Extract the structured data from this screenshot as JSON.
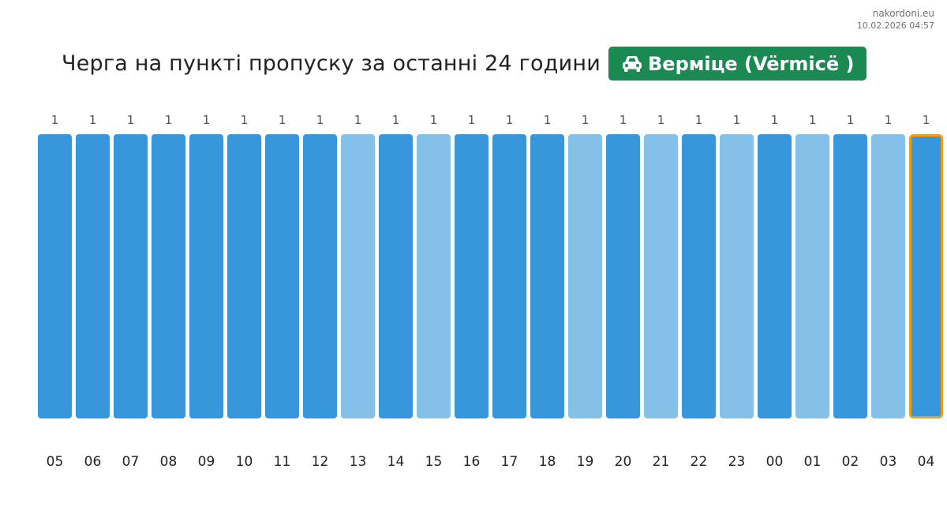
{
  "site": {
    "name": "nakordoni.eu",
    "timestamp": "10.02.2026 04:57"
  },
  "header": {
    "title": "Черга на пункті пропуску за останні 24 години",
    "checkpoint": "Верміце (Vërmicë )",
    "checkpoint_icon": "car-icon"
  },
  "colors": {
    "badge": "#1a8a52",
    "bar_dark": "#3897da",
    "bar_light": "#85c0e8",
    "highlight": "#f39c12"
  },
  "chart_data": {
    "type": "bar",
    "categories": [
      "05",
      "06",
      "07",
      "08",
      "09",
      "10",
      "11",
      "12",
      "13",
      "14",
      "15",
      "16",
      "17",
      "18",
      "19",
      "20",
      "21",
      "22",
      "23",
      "00",
      "01",
      "02",
      "03",
      "04"
    ],
    "values": [
      1,
      1,
      1,
      1,
      1,
      1,
      1,
      1,
      1,
      1,
      1,
      1,
      1,
      1,
      1,
      1,
      1,
      1,
      1,
      1,
      1,
      1,
      1,
      1
    ],
    "shade": [
      "dark",
      "dark",
      "dark",
      "dark",
      "dark",
      "dark",
      "dark",
      "dark",
      "light",
      "dark",
      "light",
      "dark",
      "dark",
      "dark",
      "light",
      "dark",
      "light",
      "dark",
      "light",
      "dark",
      "light",
      "dark",
      "light",
      "dark"
    ],
    "highlighted_category": "04",
    "title": "",
    "xlabel": "",
    "ylabel": "",
    "ylim": [
      0,
      1
    ],
    "grid": false,
    "legend": "none"
  }
}
